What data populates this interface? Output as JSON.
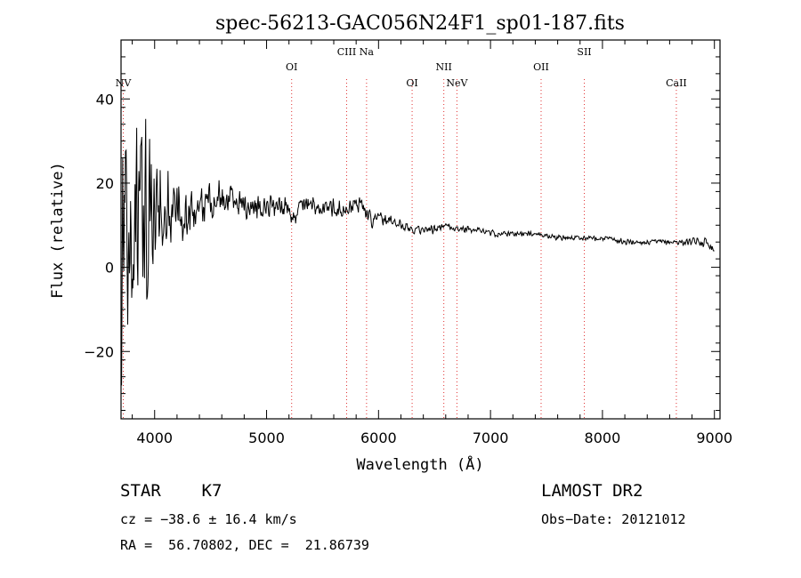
{
  "chart_data": {
    "type": "line",
    "title": "spec-56213-GAC056N24F1_sp01-187.fits",
    "xlabel": "Wavelength (Å)",
    "ylabel": "Flux (relative)",
    "xlim": [
      3700,
      9050
    ],
    "ylim": [
      -36,
      54
    ],
    "x_ticks": [
      4000,
      5000,
      6000,
      7000,
      8000,
      9000
    ],
    "y_ticks": [
      -20,
      0,
      20,
      40
    ],
    "x_tick_labels": [
      "4000",
      "5000",
      "6000",
      "7000",
      "8000",
      "9000"
    ],
    "y_tick_labels": [
      "−20",
      "0",
      "20",
      "40"
    ],
    "grid": false,
    "line_color": "#000000",
    "marker_color": "#e03030",
    "lines": [
      {
        "label": "NV",
        "wavelength": 3720,
        "row": 2
      },
      {
        "label": "OI",
        "wavelength": 5224,
        "row": 0
      },
      {
        "label": "CIII",
        "wavelength": 5715,
        "row": -1
      },
      {
        "label": "Na",
        "wavelength": 5893,
        "row": -1
      },
      {
        "label": "OI",
        "wavelength": 6300,
        "row": 2
      },
      {
        "label": "NII",
        "wavelength": 6583,
        "row": 0
      },
      {
        "label": "NeV",
        "wavelength": 6700,
        "row": 2
      },
      {
        "label": "OII",
        "wavelength": 7452,
        "row": 0
      },
      {
        "label": "SII",
        "wavelength": 7838,
        "row": -1
      },
      {
        "label": "CaII",
        "wavelength": 8660,
        "row": 2
      }
    ],
    "spectrum": {
      "x": [
        3700,
        3750,
        3800,
        3850,
        3900,
        3950,
        4000,
        4100,
        4200,
        4300,
        4400,
        4500,
        4600,
        4700,
        4800,
        4900,
        5000,
        5100,
        5200,
        5220,
        5300,
        5400,
        5500,
        5600,
        5700,
        5750,
        5800,
        5850,
        5900,
        5950,
        6000,
        6100,
        6200,
        6300,
        6400,
        6500,
        6600,
        6700,
        6800,
        6900,
        7000,
        7200,
        7400,
        7600,
        7800,
        8000,
        8200,
        8400,
        8600,
        8800,
        8950,
        9000
      ],
      "y": [
        8,
        10,
        12,
        12,
        13,
        13,
        13,
        14,
        14,
        15,
        15,
        16,
        16,
        16,
        15,
        15,
        15,
        15,
        14,
        11,
        15,
        15,
        14,
        14,
        14,
        14,
        15,
        15,
        13,
        11,
        12,
        11,
        10,
        9,
        9,
        9,
        10,
        9,
        9,
        9,
        8,
        8,
        8,
        7,
        7,
        7,
        6,
        6,
        6,
        6,
        6,
        4
      ],
      "noise": [
        40,
        38,
        35,
        30,
        26,
        22,
        16,
        13,
        10,
        9,
        7,
        6,
        5,
        4.5,
        4,
        4,
        3.5,
        3.5,
        3,
        3,
        3,
        3,
        2.5,
        2.5,
        2.5,
        2.5,
        2.5,
        2.5,
        2.5,
        2,
        2,
        1.5,
        1.5,
        1.2,
        1.2,
        1.2,
        1,
        1,
        1,
        1,
        1,
        0.8,
        0.8,
        0.8,
        0.8,
        0.8,
        0.8,
        0.8,
        0.8,
        1,
        1.5,
        1.5
      ]
    }
  },
  "footer": {
    "object_class": "STAR    K7",
    "survey": "LAMOST DR2",
    "cz": "cz = −38.6 ± 16.4 km/s",
    "obs_date": "Obs−Date: 20121012",
    "radec": "RA =  56.70802, DEC =  21.86739"
  }
}
